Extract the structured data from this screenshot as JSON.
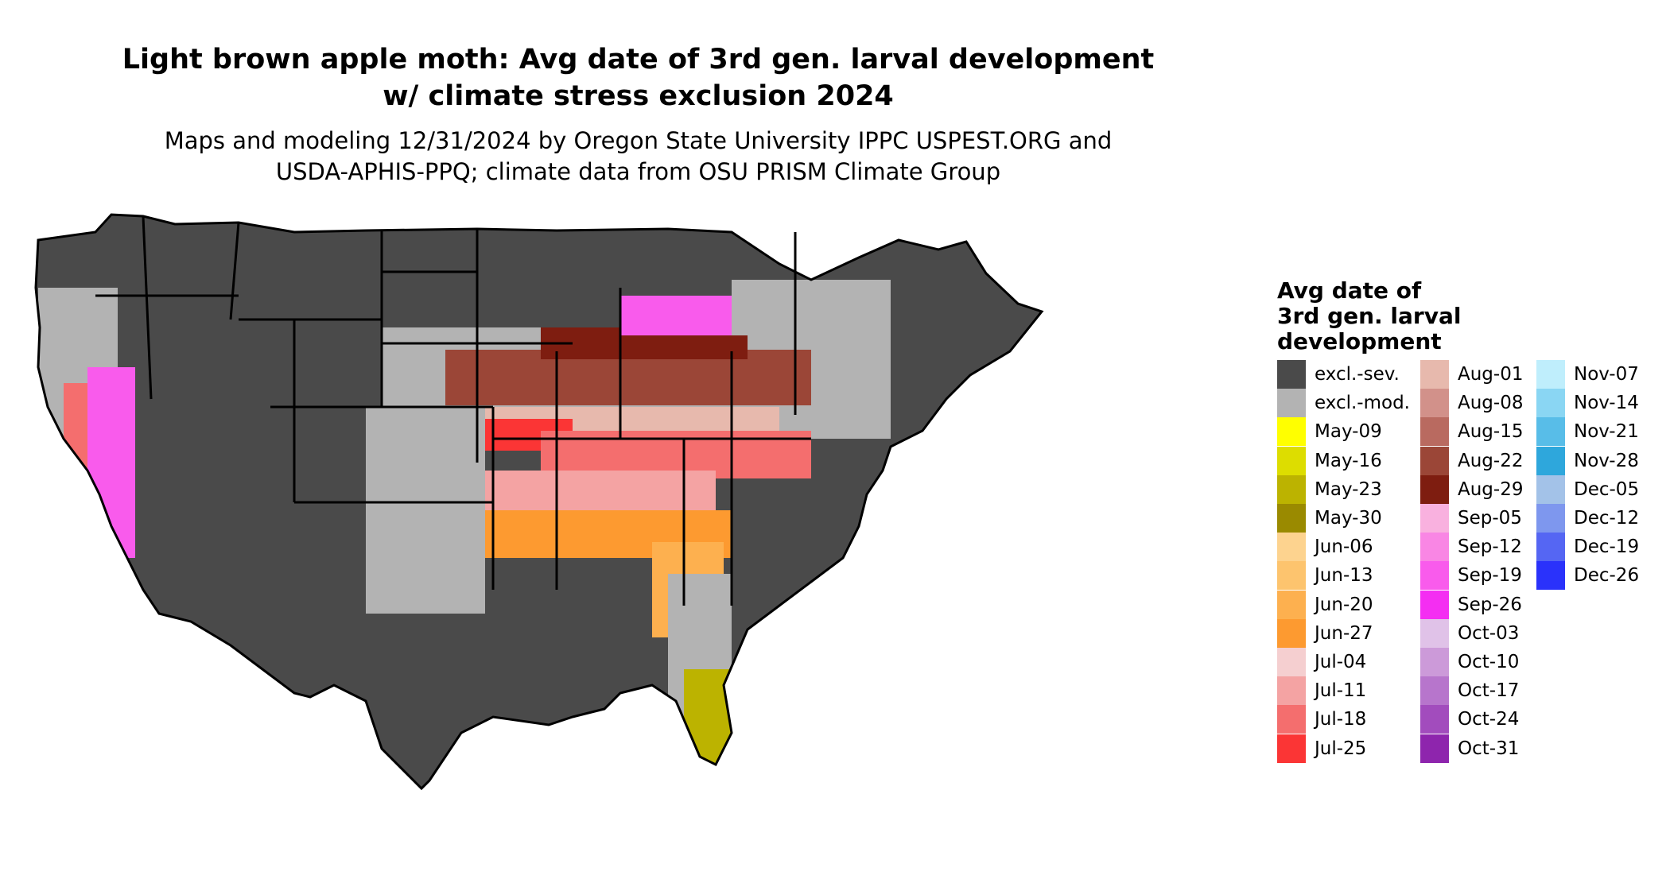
{
  "title_line1": "Light brown apple moth: Avg date of 3rd gen. larval development",
  "title_line2": "w/ climate stress exclusion 2024",
  "subtitle_line1": "Maps and modeling 12/31/2024 by Oregon State University IPPC USPEST.ORG and",
  "subtitle_line2": "USDA-APHIS-PPQ; climate data from OSU PRISM Climate Group",
  "legend": {
    "title_lines": [
      "Avg date of",
      "3rd gen. larval",
      "development"
    ],
    "items": [
      {
        "label": "excl.-sev.",
        "color": "#4a4a4a"
      },
      {
        "label": "excl.-mod.",
        "color": "#b3b3b3"
      },
      {
        "label": "May-09",
        "color": "#ffff00"
      },
      {
        "label": "May-16",
        "color": "#dddd00"
      },
      {
        "label": "May-23",
        "color": "#bcb300"
      },
      {
        "label": "May-30",
        "color": "#9a8a00"
      },
      {
        "label": "Jun-06",
        "color": "#fdd38f"
      },
      {
        "label": "Jun-13",
        "color": "#fdc46e"
      },
      {
        "label": "Jun-20",
        "color": "#fdb04f"
      },
      {
        "label": "Jun-27",
        "color": "#fd9a30"
      },
      {
        "label": "Jul-04",
        "color": "#f5cfd0"
      },
      {
        "label": "Jul-11",
        "color": "#f4a3a3"
      },
      {
        "label": "Jul-18",
        "color": "#f46e6e"
      },
      {
        "label": "Jul-25",
        "color": "#fb3535"
      },
      {
        "label": "Aug-01",
        "color": "#e7b9ad"
      },
      {
        "label": "Aug-08",
        "color": "#d2918a"
      },
      {
        "label": "Aug-15",
        "color": "#b96a60"
      },
      {
        "label": "Aug-22",
        "color": "#9b4637"
      },
      {
        "label": "Aug-29",
        "color": "#7e1d10"
      },
      {
        "label": "Sep-05",
        "color": "#f9b1df"
      },
      {
        "label": "Sep-12",
        "color": "#f986e4"
      },
      {
        "label": "Sep-19",
        "color": "#f95bec"
      },
      {
        "label": "Sep-26",
        "color": "#f42ef2"
      },
      {
        "label": "Oct-03",
        "color": "#e0c2e8"
      },
      {
        "label": "Oct-10",
        "color": "#cc9ad9"
      },
      {
        "label": "Oct-17",
        "color": "#b775cc"
      },
      {
        "label": "Oct-24",
        "color": "#a24cbd"
      },
      {
        "label": "Oct-31",
        "color": "#8e25ad"
      },
      {
        "label": "Nov-07",
        "color": "#bfeefc"
      },
      {
        "label": "Nov-14",
        "color": "#8ad6f3"
      },
      {
        "label": "Nov-21",
        "color": "#58bde8"
      },
      {
        "label": "Nov-28",
        "color": "#2ea7dc"
      },
      {
        "label": "Dec-05",
        "color": "#a3c2e8"
      },
      {
        "label": "Dec-12",
        "color": "#7e97ee"
      },
      {
        "label": "Dec-19",
        "color": "#5566f3"
      },
      {
        "label": "Dec-26",
        "color": "#2a32fb"
      }
    ]
  }
}
